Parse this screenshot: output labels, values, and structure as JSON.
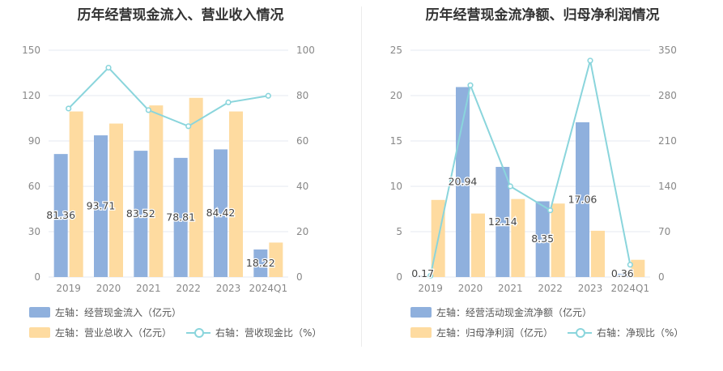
{
  "colors": {
    "bar1": "#8fb0dd",
    "bar2": "#fedba0",
    "line": "#8ad5dc",
    "grid": "#e6e8f2",
    "axis_text": "#888888"
  },
  "chart_data": [
    {
      "type": "bar",
      "title": "历年经营现金流入、营业收入情况",
      "categories": [
        "2019",
        "2020",
        "2021",
        "2022",
        "2023",
        "2024Q1"
      ],
      "left_axis": {
        "ylim": [
          0,
          150
        ],
        "ticks": [
          "0",
          "30",
          "60",
          "90",
          "120",
          "150"
        ]
      },
      "right_axis": {
        "ylim": [
          0,
          100
        ],
        "ticks": [
          "0",
          "20",
          "40",
          "60",
          "80",
          "100"
        ]
      },
      "series": [
        {
          "name": "左轴：经营现金流入（亿元）",
          "type": "bar",
          "axis": "left",
          "values": [
            81.36,
            93.71,
            83.52,
            78.81,
            84.42,
            18.22
          ],
          "labels": [
            "81.36",
            "93.71",
            "83.52",
            "78.81",
            "84.42",
            "18.22"
          ]
        },
        {
          "name": "左轴：营业总收入（亿元）",
          "type": "bar",
          "axis": "left",
          "values": [
            109.5,
            101.5,
            113.5,
            118.5,
            109.5,
            22.8
          ]
        },
        {
          "name": "右轴：营收现金比（%）",
          "type": "line",
          "axis": "right",
          "values": [
            74.3,
            92.3,
            73.6,
            66.5,
            77.0,
            79.9
          ]
        }
      ]
    },
    {
      "type": "bar",
      "title": "历年经营现金流净额、归母净利润情况",
      "categories": [
        "2019",
        "2020",
        "2021",
        "2022",
        "2023",
        "2024Q1"
      ],
      "left_axis": {
        "ylim": [
          0,
          25
        ],
        "ticks": [
          "0",
          "5",
          "10",
          "15",
          "20",
          "25"
        ]
      },
      "right_axis": {
        "ylim": [
          0,
          350
        ],
        "ticks": [
          "0",
          "70",
          "140",
          "210",
          "280",
          "350"
        ]
      },
      "series": [
        {
          "name": "左轴：经营活动现金流净额（亿元）",
          "type": "bar",
          "axis": "left",
          "values": [
            0.17,
            20.94,
            12.14,
            8.35,
            17.06,
            0.36
          ],
          "labels": [
            "0.17",
            "20.94",
            "12.14",
            "8.35",
            "17.06",
            "0.36"
          ]
        },
        {
          "name": "左轴：归母净利润（亿元）",
          "type": "bar",
          "axis": "left",
          "values": [
            8.5,
            7.0,
            8.6,
            8.1,
            5.1,
            1.9
          ]
        },
        {
          "name": "右轴：净现比（%）",
          "type": "line",
          "axis": "right",
          "values": [
            2,
            296,
            140,
            103,
            334,
            19
          ]
        }
      ]
    }
  ]
}
